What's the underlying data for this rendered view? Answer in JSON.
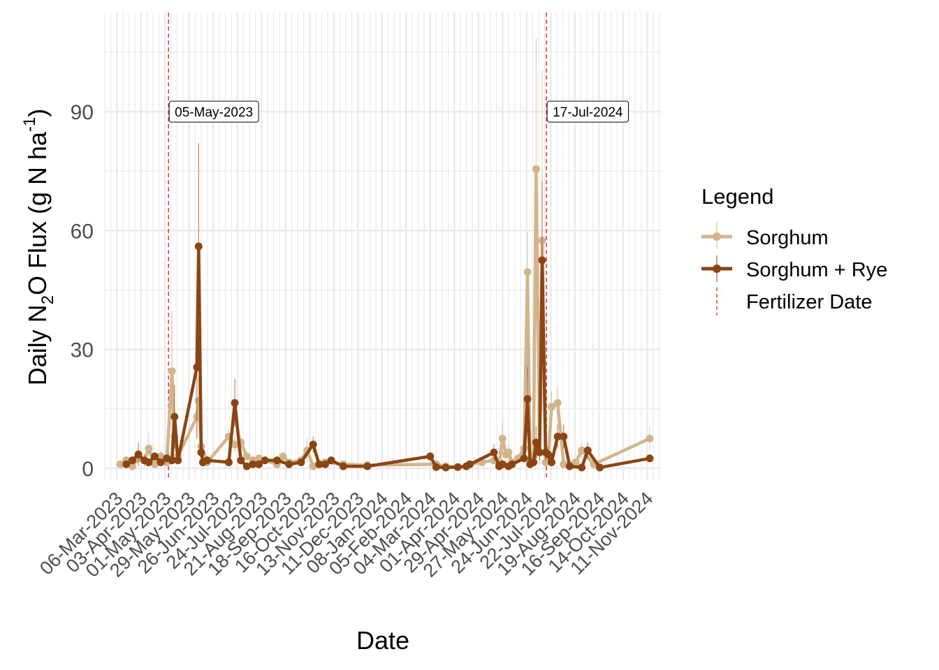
{
  "colors": {
    "sorghum": "#D2B48C",
    "sorghum_rye": "#8B4513",
    "fertilizer": "#E8393E",
    "grid": "#EBEBEB"
  },
  "chart_data": {
    "type": "line",
    "xlabel": "Date",
    "ylabel_parts": {
      "pre": "Daily N",
      "sub2": "2",
      "mid": "O Flux (g N ha",
      "sup": "-1",
      "post": ")"
    },
    "ylim": [
      -3,
      115
    ],
    "yticks": [
      0,
      30,
      60,
      90
    ],
    "y_tick_labels": [
      "0",
      "30",
      "60",
      "90"
    ],
    "x_tick_dates": [
      "2023-03-06",
      "2023-04-03",
      "2023-05-01",
      "2023-05-29",
      "2023-06-26",
      "2023-07-24",
      "2023-08-21",
      "2023-09-18",
      "2023-10-16",
      "2023-11-13",
      "2023-12-11",
      "2024-01-08",
      "2024-02-05",
      "2024-03-04",
      "2024-04-01",
      "2024-04-29",
      "2024-05-27",
      "2024-06-24",
      "2024-07-22",
      "2024-08-19",
      "2024-09-16",
      "2024-10-14",
      "2024-11-11"
    ],
    "x_tick_labels": [
      "06-Mar-2023",
      "03-Apr-2023",
      "01-May-2023",
      "29-May-2023",
      "26-Jun-2023",
      "24-Jul-2023",
      "21-Aug-2023",
      "18-Sep-2023",
      "16-Oct-2023",
      "13-Nov-2023",
      "11-Dec-2023",
      "08-Jan-2024",
      "05-Feb-2024",
      "04-Mar-2024",
      "01-Apr-2024",
      "29-Apr-2024",
      "27-May-2024",
      "24-Jun-2024",
      "22-Jul-2024",
      "19-Aug-2024",
      "16-Sep-2024",
      "14-Oct-2024",
      "11-Nov-2024"
    ],
    "xlim": [
      "2023-02-20",
      "2024-11-27"
    ],
    "grid": true,
    "legend": {
      "title": "Legend",
      "position": "right",
      "entries": [
        "Sorghum",
        "Sorghum + Rye",
        "Fertilizer Date"
      ]
    },
    "fertilizer_dates": [
      {
        "date": "2023-05-05",
        "label": "05-May-2023"
      },
      {
        "date": "2024-07-17",
        "label": "17-Jul-2024"
      }
    ],
    "series": [
      {
        "name": "Sorghum",
        "points": [
          {
            "x": "2023-03-10",
            "y": 1.0,
            "err": 0.5
          },
          {
            "x": "2023-03-17",
            "y": 2.0,
            "err": 1.0
          },
          {
            "x": "2023-03-24",
            "y": 0.5,
            "err": 0.3
          },
          {
            "x": "2023-03-31",
            "y": 2.5,
            "err": 1.5
          },
          {
            "x": "2023-04-07",
            "y": 2.0,
            "err": 1.0
          },
          {
            "x": "2023-04-12",
            "y": 5.0,
            "err": 4.0
          },
          {
            "x": "2023-04-19",
            "y": 1.0,
            "err": 0.8
          },
          {
            "x": "2023-04-26",
            "y": 3.0,
            "err": 1.5
          },
          {
            "x": "2023-05-03",
            "y": 1.5,
            "err": 1.0
          },
          {
            "x": "2023-05-09",
            "y": 24.5,
            "err": 15.0
          },
          {
            "x": "2023-05-12",
            "y": 8.0,
            "err": 6.0
          },
          {
            "x": "2023-05-16",
            "y": 3.0,
            "err": 2.0
          },
          {
            "x": "2023-06-07",
            "y": 13.0,
            "err": 5.0
          },
          {
            "x": "2023-06-09",
            "y": 17.0,
            "err": 6.0
          },
          {
            "x": "2023-06-12",
            "y": 5.5,
            "err": 3.0
          },
          {
            "x": "2023-06-19",
            "y": 1.5,
            "err": 1.0
          },
          {
            "x": "2023-07-14",
            "y": 8.0,
            "err": 2.0
          },
          {
            "x": "2023-07-21",
            "y": 6.0,
            "err": 2.0
          },
          {
            "x": "2023-07-28",
            "y": 6.5,
            "err": 2.0
          },
          {
            "x": "2023-08-04",
            "y": 3.0,
            "err": 1.0
          },
          {
            "x": "2023-08-11",
            "y": 2.0,
            "err": 1.0
          },
          {
            "x": "2023-08-18",
            "y": 2.5,
            "err": 1.0
          },
          {
            "x": "2023-08-25",
            "y": 2.0,
            "err": 1.0
          },
          {
            "x": "2023-09-08",
            "y": 1.0,
            "err": 0.5
          },
          {
            "x": "2023-09-15",
            "y": 3.0,
            "err": 1.0
          },
          {
            "x": "2023-09-22",
            "y": 1.5,
            "err": 0.5
          },
          {
            "x": "2023-10-06",
            "y": 2.0,
            "err": 1.0
          },
          {
            "x": "2023-10-13",
            "y": 4.5,
            "err": 3.0
          },
          {
            "x": "2023-10-20",
            "y": 0.5,
            "err": 0.3
          },
          {
            "x": "2023-10-27",
            "y": 1.0,
            "err": 0.5
          },
          {
            "x": "2023-11-03",
            "y": 1.5,
            "err": 0.5
          },
          {
            "x": "2023-11-24",
            "y": 1.0,
            "err": 0.5
          },
          {
            "x": "2023-12-22",
            "y": 0.8,
            "err": 0.3
          },
          {
            "x": "2024-03-11",
            "y": 1.0,
            "err": 0.5
          },
          {
            "x": "2024-03-22",
            "y": 0.5,
            "err": 0.3
          },
          {
            "x": "2024-04-05",
            "y": 0.3,
            "err": 0.2
          },
          {
            "x": "2024-04-15",
            "y": 0.5,
            "err": 0.3
          },
          {
            "x": "2024-04-19",
            "y": 1.0,
            "err": 0.5
          },
          {
            "x": "2024-05-03",
            "y": 1.5,
            "err": 0.8
          },
          {
            "x": "2024-05-17",
            "y": 2.0,
            "err": 1.0
          },
          {
            "x": "2024-05-23",
            "y": 1.5,
            "err": 1.0
          },
          {
            "x": "2024-05-27",
            "y": 7.5,
            "err": 4.0
          },
          {
            "x": "2024-05-31",
            "y": 3.5,
            "err": 2.0
          },
          {
            "x": "2024-06-03",
            "y": 4.0,
            "err": 2.0
          },
          {
            "x": "2024-06-07",
            "y": 1.5,
            "err": 1.0
          },
          {
            "x": "2024-06-14",
            "y": 2.5,
            "err": 1.0
          },
          {
            "x": "2024-06-21",
            "y": 5.0,
            "err": 2.0
          },
          {
            "x": "2024-06-25",
            "y": 49.5,
            "err": 10.0
          },
          {
            "x": "2024-06-28",
            "y": 2.0,
            "err": 1.5
          },
          {
            "x": "2024-07-02",
            "y": 3.0,
            "err": 2.0
          },
          {
            "x": "2024-07-05",
            "y": 75.5,
            "err": 33.0
          },
          {
            "x": "2024-07-09",
            "y": 4.0,
            "err": 3.0
          },
          {
            "x": "2024-07-12",
            "y": 57.5,
            "err": 43.0
          },
          {
            "x": "2024-07-16",
            "y": 1.5,
            "err": 1.0
          },
          {
            "x": "2024-07-19",
            "y": 2.5,
            "err": 1.5
          },
          {
            "x": "2024-07-23",
            "y": 15.5,
            "err": 4.0
          },
          {
            "x": "2024-07-30",
            "y": 16.5,
            "err": 4.0
          },
          {
            "x": "2024-08-06",
            "y": 1.0,
            "err": 0.5
          },
          {
            "x": "2024-08-20",
            "y": 1.5,
            "err": 0.8
          },
          {
            "x": "2024-08-27",
            "y": 4.5,
            "err": 2.0
          },
          {
            "x": "2024-09-10",
            "y": 1.0,
            "err": 0.5
          },
          {
            "x": "2024-11-14",
            "y": 7.5,
            "err": 3.0
          }
        ]
      },
      {
        "name": "Sorghum + Rye",
        "points": [
          {
            "x": "2023-03-17",
            "y": 1.0,
            "err": 0.5
          },
          {
            "x": "2023-03-24",
            "y": 2.0,
            "err": 1.0
          },
          {
            "x": "2023-03-31",
            "y": 3.5,
            "err": 3.0
          },
          {
            "x": "2023-04-07",
            "y": 2.0,
            "err": 1.5
          },
          {
            "x": "2023-04-12",
            "y": 1.5,
            "err": 1.0
          },
          {
            "x": "2023-04-19",
            "y": 3.0,
            "err": 1.0
          },
          {
            "x": "2023-04-26",
            "y": 1.5,
            "err": 1.0
          },
          {
            "x": "2023-05-03",
            "y": 2.5,
            "err": 1.0
          },
          {
            "x": "2023-05-09",
            "y": 2.0,
            "err": 1.0
          },
          {
            "x": "2023-05-12",
            "y": 13.0,
            "err": 8.0
          },
          {
            "x": "2023-05-16",
            "y": 2.0,
            "err": 1.0
          },
          {
            "x": "2023-06-07",
            "y": 25.5,
            "err": 18.0
          },
          {
            "x": "2023-06-09",
            "y": 56.0,
            "err": 26.0
          },
          {
            "x": "2023-06-12",
            "y": 4.0,
            "err": 2.0
          },
          {
            "x": "2023-06-14",
            "y": 1.5,
            "err": 1.0
          },
          {
            "x": "2023-06-19",
            "y": 2.0,
            "err": 1.0
          },
          {
            "x": "2023-07-14",
            "y": 1.5,
            "err": 1.0
          },
          {
            "x": "2023-07-21",
            "y": 16.5,
            "err": 6.0
          },
          {
            "x": "2023-07-28",
            "y": 2.0,
            "err": 1.0
          },
          {
            "x": "2023-08-04",
            "y": 0.5,
            "err": 0.5
          },
          {
            "x": "2023-08-11",
            "y": 1.0,
            "err": 0.5
          },
          {
            "x": "2023-08-18",
            "y": 1.0,
            "err": 0.5
          },
          {
            "x": "2023-08-25",
            "y": 2.0,
            "err": 1.0
          },
          {
            "x": "2023-09-08",
            "y": 2.0,
            "err": 1.0
          },
          {
            "x": "2023-09-22",
            "y": 1.0,
            "err": 0.5
          },
          {
            "x": "2023-10-06",
            "y": 1.5,
            "err": 0.5
          },
          {
            "x": "2023-10-20",
            "y": 6.0,
            "err": 2.0
          },
          {
            "x": "2023-10-27",
            "y": 1.0,
            "err": 0.5
          },
          {
            "x": "2023-11-03",
            "y": 1.0,
            "err": 0.5
          },
          {
            "x": "2023-11-10",
            "y": 2.0,
            "err": 1.0
          },
          {
            "x": "2023-11-24",
            "y": 0.5,
            "err": 0.3
          },
          {
            "x": "2023-12-22",
            "y": 0.5,
            "err": 0.3
          },
          {
            "x": "2024-03-04",
            "y": 3.0,
            "err": 1.0
          },
          {
            "x": "2024-03-11",
            "y": 0.3,
            "err": 0.2
          },
          {
            "x": "2024-03-22",
            "y": 0.2,
            "err": 0.2
          },
          {
            "x": "2024-04-05",
            "y": 0.3,
            "err": 0.2
          },
          {
            "x": "2024-04-15",
            "y": 0.5,
            "err": 0.3
          },
          {
            "x": "2024-04-19",
            "y": 1.0,
            "err": 0.5
          },
          {
            "x": "2024-05-17",
            "y": 4.0,
            "err": 2.0
          },
          {
            "x": "2024-05-23",
            "y": 0.5,
            "err": 0.5
          },
          {
            "x": "2024-05-27",
            "y": 1.0,
            "err": 0.5
          },
          {
            "x": "2024-06-03",
            "y": 0.5,
            "err": 0.3
          },
          {
            "x": "2024-06-07",
            "y": 1.0,
            "err": 0.5
          },
          {
            "x": "2024-06-21",
            "y": 2.5,
            "err": 1.0
          },
          {
            "x": "2024-06-25",
            "y": 17.5,
            "err": 8.0
          },
          {
            "x": "2024-06-28",
            "y": 1.0,
            "err": 0.5
          },
          {
            "x": "2024-07-02",
            "y": 1.5,
            "err": 1.0
          },
          {
            "x": "2024-07-05",
            "y": 6.5,
            "err": 4.0
          },
          {
            "x": "2024-07-09",
            "y": 4.0,
            "err": 2.0
          },
          {
            "x": "2024-07-12",
            "y": 52.5,
            "err": 20.0
          },
          {
            "x": "2024-07-16",
            "y": 4.0,
            "err": 2.0
          },
          {
            "x": "2024-07-19",
            "y": 3.5,
            "err": 2.0
          },
          {
            "x": "2024-07-23",
            "y": 1.5,
            "err": 1.0
          },
          {
            "x": "2024-07-30",
            "y": 8.0,
            "err": 3.0
          },
          {
            "x": "2024-08-06",
            "y": 8.0,
            "err": 3.0
          },
          {
            "x": "2024-08-13",
            "y": 0.5,
            "err": 0.3
          },
          {
            "x": "2024-08-27",
            "y": 0.2,
            "err": 0.2
          },
          {
            "x": "2024-09-03",
            "y": 4.5,
            "err": 2.0
          },
          {
            "x": "2024-09-17",
            "y": 0.2,
            "err": 0.2
          },
          {
            "x": "2024-11-14",
            "y": 2.5,
            "err": 1.0
          }
        ]
      }
    ]
  }
}
